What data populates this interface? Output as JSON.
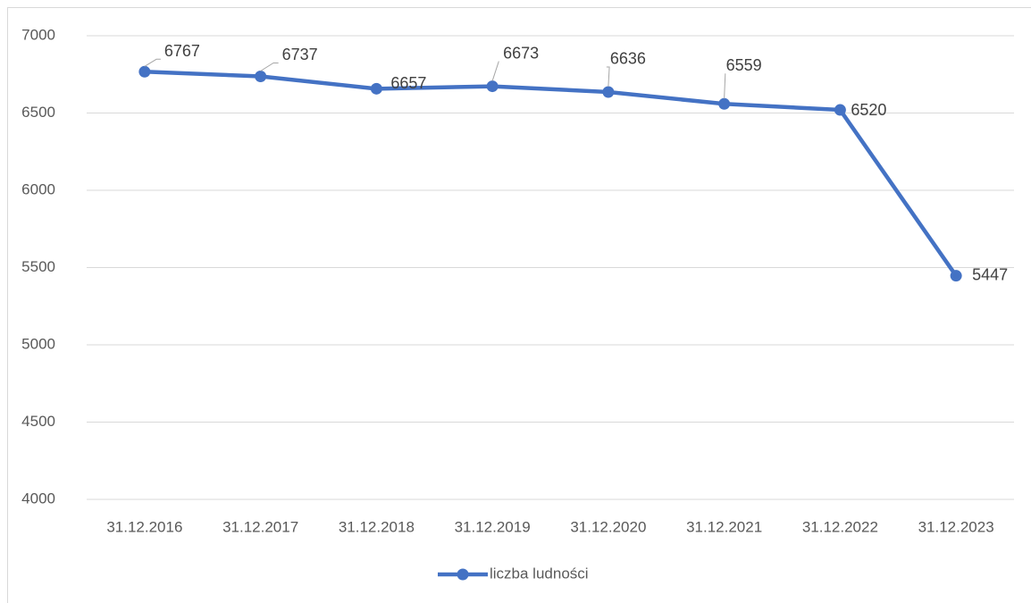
{
  "chart_data": {
    "type": "line",
    "categories": [
      "31.12.2016",
      "31.12.2017",
      "31.12.2018",
      "31.12.2019",
      "31.12.2020",
      "31.12.2021",
      "31.12.2022",
      "31.12.2023"
    ],
    "series": [
      {
        "name": "liczba ludności",
        "color": "#4472c4",
        "values": [
          6767,
          6737,
          6657,
          6673,
          6636,
          6559,
          6520,
          5447
        ]
      }
    ],
    "ylim": [
      4000,
      7000
    ],
    "yticks": [
      4000,
      4500,
      5000,
      5500,
      6000,
      6500,
      7000
    ],
    "grid": true,
    "legend": "bottom"
  }
}
